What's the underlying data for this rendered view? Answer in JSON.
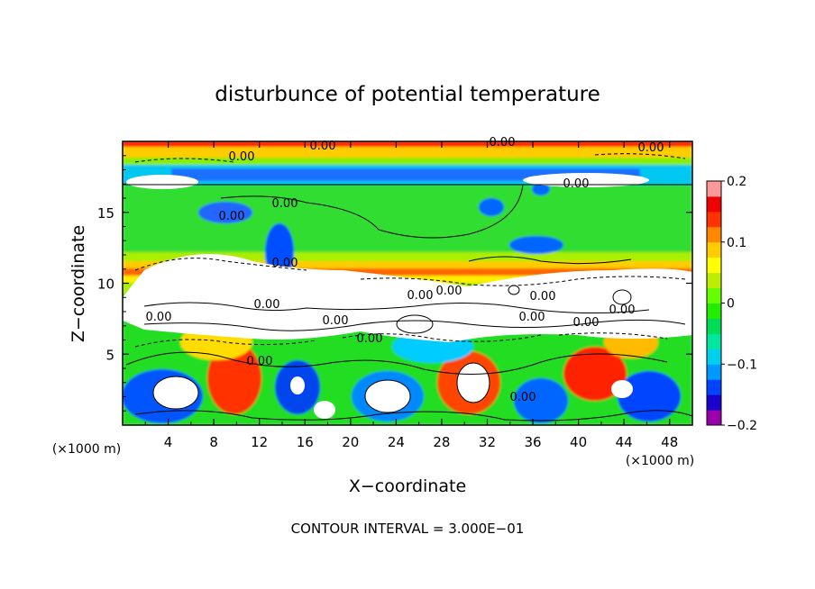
{
  "chart_data": {
    "type": "heatmap",
    "title": "disturbunce of potential temperature",
    "xlabel": "X−coordinate",
    "ylabel": "Z−coordinate",
    "x_unit": "(×1000 m)",
    "y_unit": "(×1000 m)",
    "xlim": [
      0,
      50
    ],
    "ylim": [
      0,
      20
    ],
    "x_ticks": [
      4,
      8,
      12,
      16,
      20,
      24,
      28,
      32,
      36,
      40,
      44,
      48
    ],
    "y_ticks": [
      5,
      10,
      15
    ],
    "colorbar": {
      "range": [
        -0.2,
        0.2
      ],
      "ticks": [
        "0.2",
        "0.1",
        "0",
        "−0.1",
        "−0.2"
      ],
      "colors": [
        "#9900aa",
        "#1a00cc",
        "#0044ff",
        "#0099ff",
        "#00d0f0",
        "#00e8a0",
        "#00dd55",
        "#22ee00",
        "#66ff00",
        "#bbee00",
        "#ffff00",
        "#ffcc00",
        "#ff8800",
        "#ff3300",
        "#ee0000",
        "#ff9999"
      ]
    },
    "contour_labels": [
      "0.00",
      "0.00",
      "0.00",
      "0.00",
      "0.00",
      "0.00",
      "0.00",
      "0.00",
      "0.00",
      "0.00",
      "0.00",
      "0.00",
      "0.00",
      "0.00",
      "0.00",
      "0.00",
      "0.00",
      "0.00",
      "0.00",
      "0.00"
    ],
    "grid": false
  },
  "footer": "CONTOUR INTERVAL = 3.000E−01"
}
